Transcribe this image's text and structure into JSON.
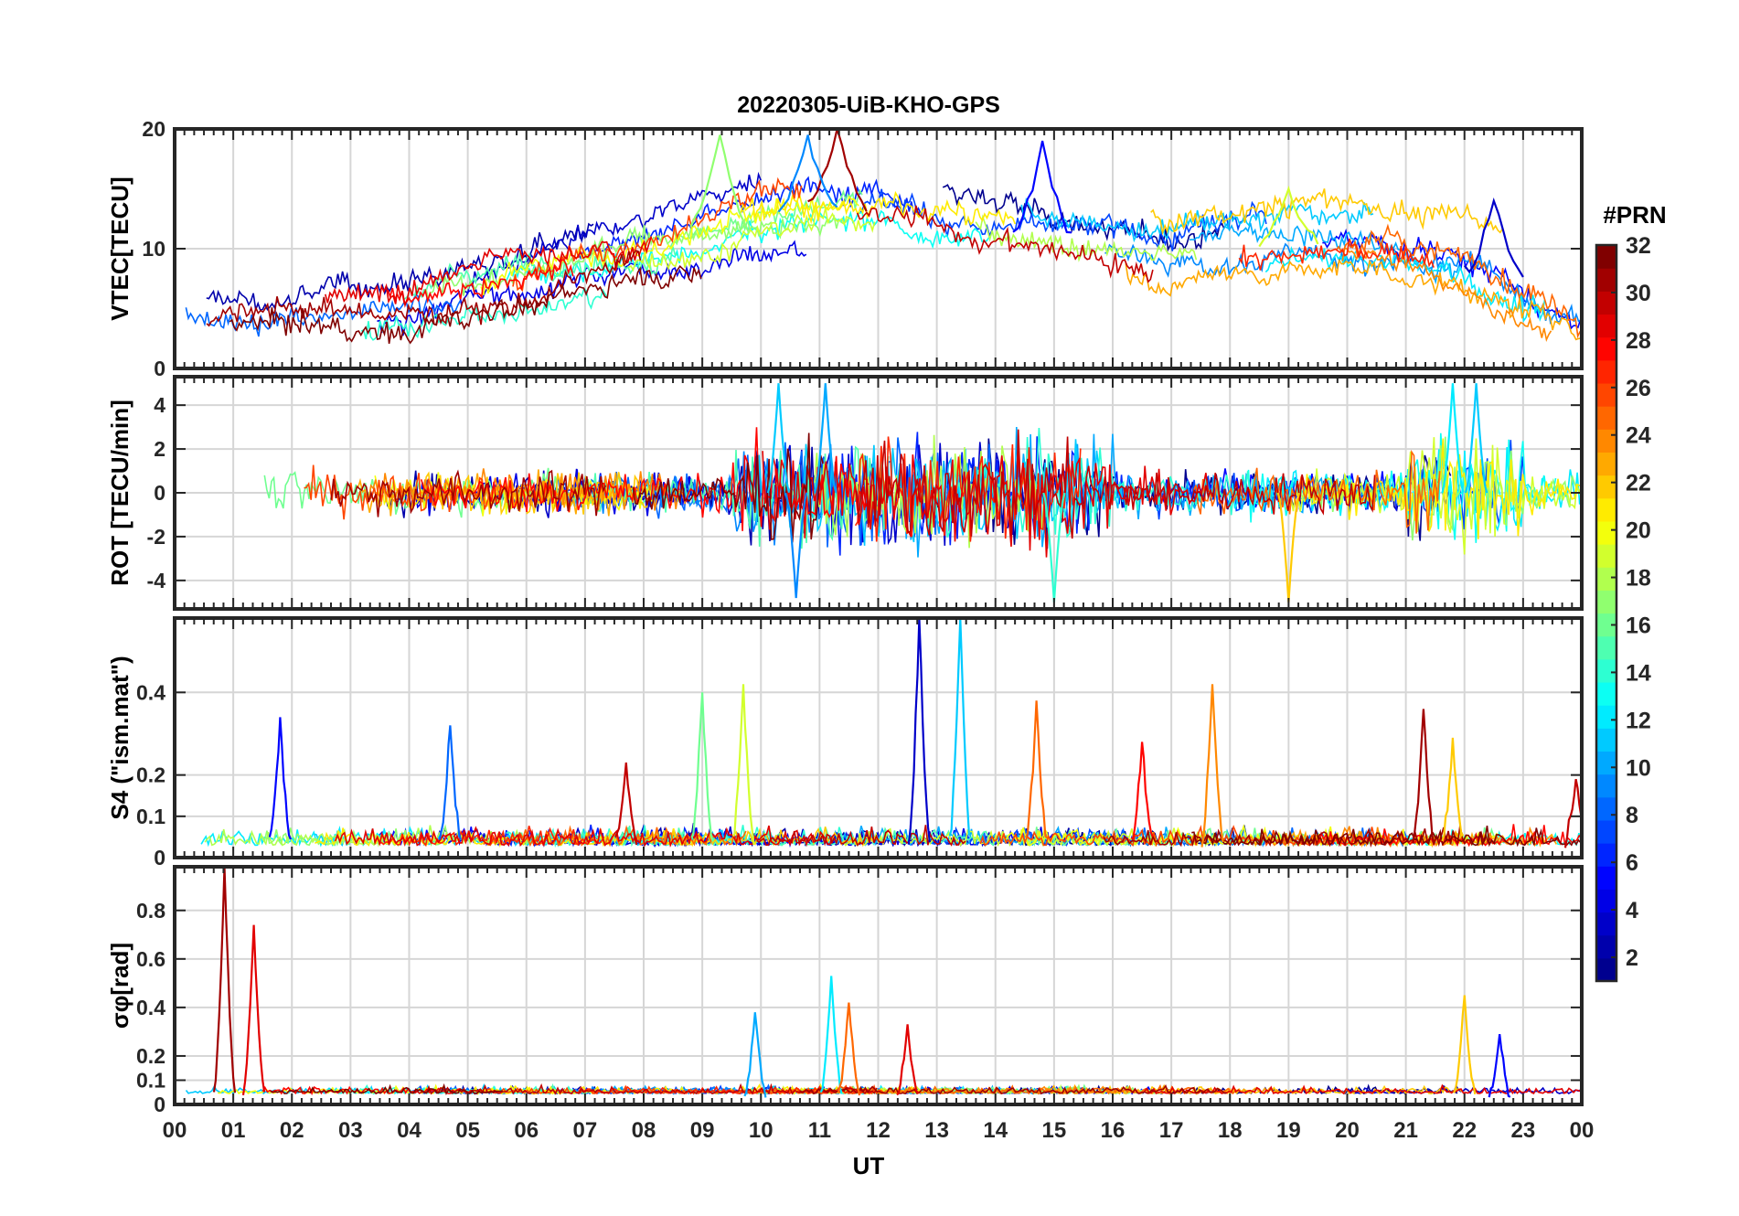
{
  "figure": {
    "title": "20220305-UiB-KHO-GPS",
    "xlabel": "UT",
    "x_tick_labels": [
      "00",
      "01",
      "02",
      "03",
      "04",
      "05",
      "06",
      "07",
      "08",
      "09",
      "10",
      "11",
      "12",
      "13",
      "14",
      "15",
      "16",
      "17",
      "18",
      "19",
      "20",
      "21",
      "22",
      "23",
      "00"
    ],
    "xlim_hours": [
      0,
      24
    ],
    "grid": true
  },
  "colorbar": {
    "title": "#PRN",
    "range": [
      1,
      32
    ],
    "ticks": [
      "2",
      "4",
      "6",
      "8",
      "10",
      "12",
      "14",
      "16",
      "18",
      "20",
      "22",
      "24",
      "26",
      "28",
      "30",
      "32"
    ],
    "colormap": "jet",
    "colors": [
      "#00008f",
      "#0000ff",
      "#0080ff",
      "#00ffff",
      "#80ff80",
      "#ffff00",
      "#ff8000",
      "#ff0000",
      "#800000"
    ]
  },
  "chart_data": [
    {
      "type": "line",
      "panel": "vtec",
      "ylabel": "VTEC[TECU]",
      "ylim": [
        0,
        20
      ],
      "y_ticks": [
        "0",
        "10",
        "20"
      ],
      "series_by": "PRN",
      "events": [
        {
          "prn": 31,
          "hour": 11.3,
          "value": 20
        },
        {
          "prn": 5,
          "hour": 14.8,
          "value": 19
        },
        {
          "prn": 9,
          "hour": 10.8,
          "value": 19.5
        },
        {
          "prn": 17,
          "hour": 9.3,
          "value": 19.5
        },
        {
          "prn": 19,
          "hour": 19.0,
          "value": 15
        },
        {
          "prn": 3,
          "hour": 22.5,
          "value": 14
        }
      ]
    },
    {
      "type": "line",
      "panel": "rot",
      "ylabel": "ROT [TECU/min]",
      "ylim": [
        -5.3,
        5.3
      ],
      "y_ticks": [
        "-4",
        "-2",
        "0",
        "2",
        "4"
      ],
      "series_by": "PRN",
      "events": [
        {
          "prn": 11,
          "hour": 10.3,
          "value": 5.0
        },
        {
          "prn": 9,
          "hour": 10.6,
          "value": -4.8
        },
        {
          "prn": 10,
          "hour": 11.1,
          "value": 5.0
        },
        {
          "prn": 14,
          "hour": 15.0,
          "value": -5.0
        },
        {
          "prn": 22,
          "hour": 19.0,
          "value": -5.0
        },
        {
          "prn": 12,
          "hour": 21.8,
          "value": 5.0
        },
        {
          "prn": 11,
          "hour": 22.2,
          "value": 5.0
        }
      ]
    },
    {
      "type": "line",
      "panel": "s4",
      "ylabel": "S4 (\"ism.mat\")",
      "ylim": [
        0,
        0.58
      ],
      "y_ticks": [
        "0",
        "0.1",
        "0.2",
        "0.4"
      ],
      "series_by": "PRN",
      "events": [
        {
          "prn": 5,
          "hour": 1.8,
          "value": 0.34
        },
        {
          "prn": 8,
          "hour": 4.7,
          "value": 0.32
        },
        {
          "prn": 30,
          "hour": 7.7,
          "value": 0.23
        },
        {
          "prn": 16,
          "hour": 9.0,
          "value": 0.4
        },
        {
          "prn": 19,
          "hour": 9.7,
          "value": 0.42
        },
        {
          "prn": 3,
          "hour": 12.7,
          "value": 0.58
        },
        {
          "prn": 11,
          "hour": 13.4,
          "value": 0.58
        },
        {
          "prn": 25,
          "hour": 14.7,
          "value": 0.38
        },
        {
          "prn": 28,
          "hour": 16.5,
          "value": 0.28
        },
        {
          "prn": 24,
          "hour": 17.7,
          "value": 0.42
        },
        {
          "prn": 31,
          "hour": 21.3,
          "value": 0.36
        },
        {
          "prn": 22,
          "hour": 21.8,
          "value": 0.29
        },
        {
          "prn": 30,
          "hour": 23.9,
          "value": 0.19
        }
      ]
    },
    {
      "type": "line",
      "panel": "sigma_phi",
      "ylabel": "σφ[rad]",
      "ylim": [
        0,
        0.98
      ],
      "y_ticks": [
        "0",
        "0.1",
        "0.2",
        "0.4",
        "0.6",
        "0.8"
      ],
      "series_by": "PRN",
      "events": [
        {
          "prn": 31,
          "hour": 0.85,
          "value": 0.98
        },
        {
          "prn": 29,
          "hour": 1.35,
          "value": 0.74
        },
        {
          "prn": 10,
          "hour": 9.9,
          "value": 0.38
        },
        {
          "prn": 12,
          "hour": 11.2,
          "value": 0.53
        },
        {
          "prn": 25,
          "hour": 11.5,
          "value": 0.42
        },
        {
          "prn": 29,
          "hour": 12.5,
          "value": 0.33
        },
        {
          "prn": 22,
          "hour": 22.0,
          "value": 0.45
        },
        {
          "prn": 5,
          "hour": 22.6,
          "value": 0.29
        }
      ]
    }
  ]
}
